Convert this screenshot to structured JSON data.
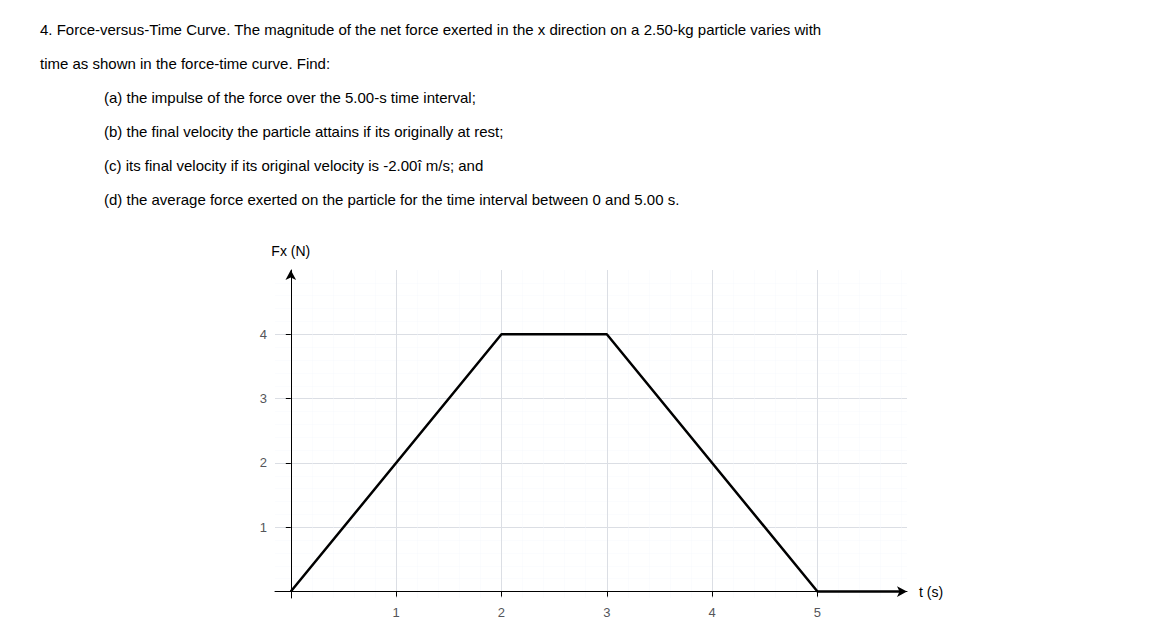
{
  "chart_data": {
    "type": "line",
    "annotations": [
      "4. Force-versus-Time Curve. The magnitude of the net force exerted in the x direction on a 2.50-kg particle varies with",
      "time as shown in the force-time curve. Find:",
      "(a) the impulse of the force over the 5.00-s time interval;",
      "(b) the final velocity the particle attains if its originally at rest;",
      "(c) its final velocity if its original velocity is -2.00î m/s; and",
      "(d) the average force exerted on the particle for the time interval between 0 and 5.00 s."
    ],
    "xlabel": "t (s)",
    "ylabel": "Fx (N)",
    "x": [
      0,
      2,
      3,
      5,
      5.8
    ],
    "values": [
      0,
      4,
      4,
      0,
      0
    ],
    "color": "#000000",
    "xlim": [
      -0.15,
      5.85
    ],
    "ylim": [
      -0.1,
      5.0
    ],
    "xticks": [
      1,
      2,
      3,
      4,
      5
    ],
    "yticks": [
      1,
      2,
      3,
      4
    ],
    "grid": true
  }
}
